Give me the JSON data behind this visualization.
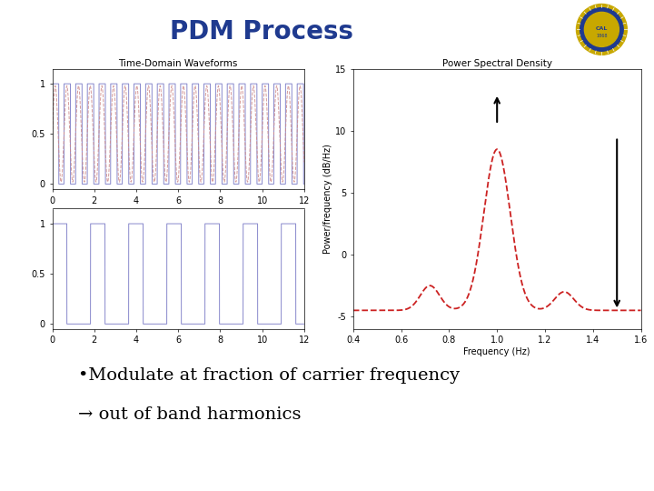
{
  "title": "PDM Process",
  "title_color": "#1F3A8F",
  "title_fontsize": 20,
  "bullet_line1": "•Modulate at fraction of carrier frequency",
  "bullet_line2": "→ out of band harmonics",
  "bullet_fontsize": 14,
  "top_bar_color": "#1F3A8F",
  "bottom_bar_color": "#1F3A8F",
  "bg_color": "#FFFFFF",
  "subplot_title_time": "Time-Domain Waveforms",
  "subplot_title_psd": "Power Spectral Density",
  "time_xlim": [
    0,
    12
  ],
  "time_xticks": [
    0,
    2,
    4,
    6,
    8,
    10,
    12
  ],
  "top_waveform_color": "#8888CC",
  "top_waveform_dashed_color": "#CC8888",
  "bottom_waveform_color": "#8888CC",
  "psd_line_color": "#CC2222",
  "psd_line_style": "--",
  "psd_arrow_color": "#000000",
  "psd_xlim": [
    0.4,
    1.6
  ],
  "psd_xticks": [
    0.4,
    0.6,
    0.8,
    1.0,
    1.2,
    1.4,
    1.6
  ],
  "psd_ylim": [
    -6,
    15
  ],
  "psd_yticks": [
    -5,
    0,
    5,
    10,
    15
  ],
  "psd_xlabel": "Frequency (Hz)",
  "psd_ylabel": "Power/frequency (dB/Hz)"
}
